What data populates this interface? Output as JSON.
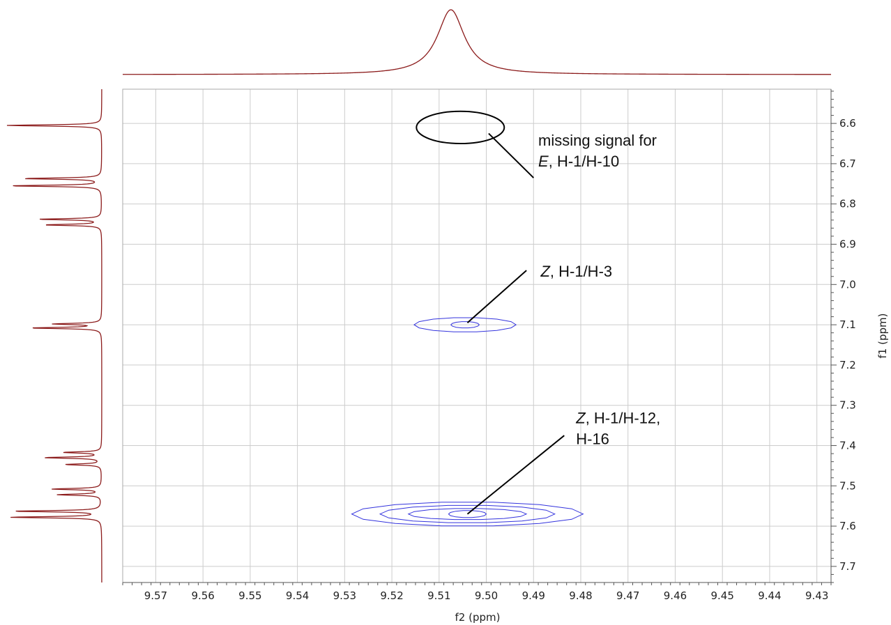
{
  "chart_data": {
    "type": "contour",
    "xlabel": "f2 (ppm)",
    "ylabel": "f1 (ppm)",
    "xlim": [
      9.577,
      9.427
    ],
    "ylim": [
      6.515,
      7.74
    ],
    "x_ticks": [
      "9.57",
      "9.56",
      "9.55",
      "9.54",
      "9.53",
      "9.52",
      "9.51",
      "9.50",
      "9.49",
      "9.48",
      "9.47",
      "9.46",
      "9.45",
      "9.44",
      "9.43"
    ],
    "y_ticks": [
      "6.6",
      "6.7",
      "6.8",
      "6.9",
      "7.0",
      "7.1",
      "7.2",
      "7.3",
      "7.4",
      "7.5",
      "7.6",
      "7.7"
    ],
    "grid": true,
    "colors": {
      "contour": "#3333dd",
      "projection": "#8b1a1a",
      "grid": "#cccccc",
      "annotation": "#000000"
    },
    "top_projection": {
      "peak_ppm": 9.5075,
      "width_ppm": 0.0035
    },
    "side_projection_peaks": [
      {
        "ppm": 6.605,
        "height": 1.0
      },
      {
        "ppm": 6.737,
        "height": 0.82
      },
      {
        "ppm": 6.755,
        "height": 0.96
      },
      {
        "ppm": 6.838,
        "height": 0.66
      },
      {
        "ppm": 6.852,
        "height": 0.6
      },
      {
        "ppm": 7.098,
        "height": 0.5
      },
      {
        "ppm": 7.108,
        "height": 0.74
      },
      {
        "ppm": 7.417,
        "height": 0.4
      },
      {
        "ppm": 7.43,
        "height": 0.6
      },
      {
        "ppm": 7.447,
        "height": 0.38
      },
      {
        "ppm": 7.508,
        "height": 0.52
      },
      {
        "ppm": 7.522,
        "height": 0.46
      },
      {
        "ppm": 7.563,
        "height": 0.92
      },
      {
        "ppm": 7.578,
        "height": 0.96
      }
    ],
    "cross_peaks": [
      {
        "label": "Z, H-1/H-3",
        "x": 9.5045,
        "y": 7.1,
        "levels": [
          [
            0.0108,
            0.018
          ],
          [
            0.003,
            0.008
          ]
        ]
      },
      {
        "label": "Z, H-1/H-12, H-16",
        "x": 9.504,
        "y": 7.57,
        "levels": [
          [
            0.0245,
            0.03
          ],
          [
            0.0185,
            0.022
          ],
          [
            0.0125,
            0.014
          ],
          [
            0.004,
            0.009
          ]
        ]
      }
    ],
    "missing_marker": {
      "x": 9.5055,
      "y": 6.61,
      "rx": 0.0093,
      "ry": 0.04
    },
    "annotations": [
      {
        "id": "missing",
        "lines": [
          {
            "em": "",
            "rest": "missing signal for"
          },
          {
            "em": "E",
            "rest": ", H-1/H-10"
          }
        ],
        "text_x": 9.489,
        "text_y": 6.655,
        "point_x": 9.4995,
        "point_y": 6.625,
        "line_end_x": 9.49,
        "line_end_y": 6.735
      },
      {
        "id": "z13",
        "lines": [
          {
            "em": "Z",
            "rest": ", H-1/H-3"
          }
        ],
        "text_x": 9.4885,
        "text_y": 6.98,
        "point_x": 9.504,
        "point_y": 7.095,
        "line_end_x": 9.4915,
        "line_end_y": 6.965
      },
      {
        "id": "z1216",
        "lines": [
          {
            "em": "Z",
            "rest": ", H-1/H-12,"
          },
          {
            "em": "",
            "rest": "H-16"
          }
        ],
        "text_x": 9.481,
        "text_y": 7.345,
        "point_x": 9.504,
        "point_y": 7.57,
        "line_end_x": 9.4835,
        "line_end_y": 7.375
      }
    ]
  }
}
